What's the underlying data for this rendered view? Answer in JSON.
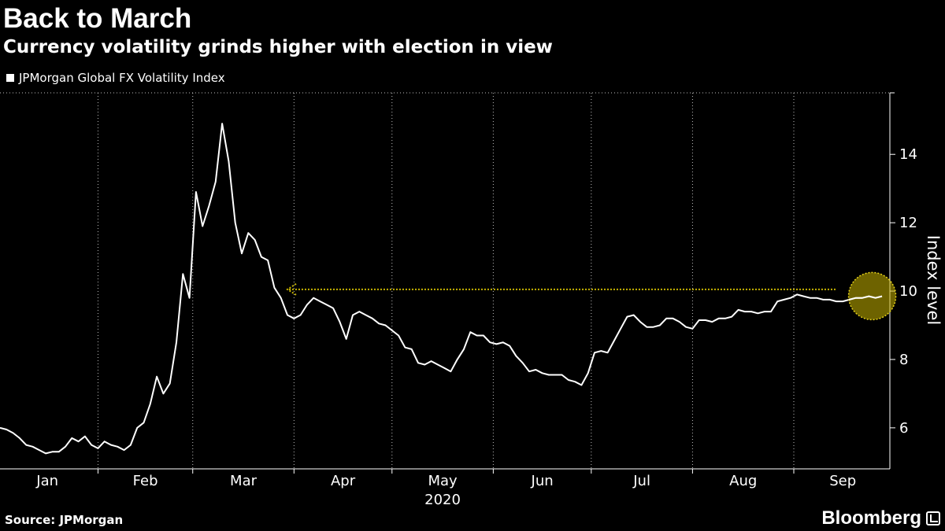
{
  "title": "Back to March",
  "subtitle": "Currency volatility grinds higher with election in view",
  "source": "Source: JPMorgan",
  "brand": "Bloomberg",
  "colors": {
    "background": "#000000",
    "line": "#ffffff",
    "grid": "#ffffff",
    "highlight": "#c8b400",
    "arrow": "#c8b400"
  },
  "chart_data": {
    "type": "line",
    "series": [
      {
        "name": "JPMorgan Global FX Volatility Index",
        "x": [
          "2020-01-02",
          "2020-01-04",
          "2020-01-06",
          "2020-01-08",
          "2020-01-10",
          "2020-01-12",
          "2020-01-14",
          "2020-01-16",
          "2020-01-18",
          "2020-01-20",
          "2020-01-22",
          "2020-01-24",
          "2020-01-26",
          "2020-01-28",
          "2020-01-30",
          "2020-02-01",
          "2020-02-03",
          "2020-02-05",
          "2020-02-07",
          "2020-02-09",
          "2020-02-11",
          "2020-02-13",
          "2020-02-15",
          "2020-02-17",
          "2020-02-19",
          "2020-02-21",
          "2020-02-23",
          "2020-02-25",
          "2020-02-27",
          "2020-02-29",
          "2020-03-02",
          "2020-03-04",
          "2020-03-06",
          "2020-03-08",
          "2020-03-10",
          "2020-03-12",
          "2020-03-14",
          "2020-03-16",
          "2020-03-18",
          "2020-03-20",
          "2020-03-22",
          "2020-03-24",
          "2020-03-26",
          "2020-03-28",
          "2020-03-30",
          "2020-04-01",
          "2020-04-03",
          "2020-04-05",
          "2020-04-07",
          "2020-04-09",
          "2020-04-11",
          "2020-04-13",
          "2020-04-15",
          "2020-04-17",
          "2020-04-19",
          "2020-04-21",
          "2020-04-23",
          "2020-04-25",
          "2020-04-27",
          "2020-04-29",
          "2020-05-01",
          "2020-05-03",
          "2020-05-05",
          "2020-05-07",
          "2020-05-09",
          "2020-05-11",
          "2020-05-13",
          "2020-05-15",
          "2020-05-17",
          "2020-05-19",
          "2020-05-21",
          "2020-05-23",
          "2020-05-25",
          "2020-05-27",
          "2020-05-29",
          "2020-05-31",
          "2020-06-02",
          "2020-06-04",
          "2020-06-06",
          "2020-06-08",
          "2020-06-10",
          "2020-06-12",
          "2020-06-14",
          "2020-06-16",
          "2020-06-18",
          "2020-06-20",
          "2020-06-22",
          "2020-06-24",
          "2020-06-26",
          "2020-06-28",
          "2020-06-30",
          "2020-07-02",
          "2020-07-04",
          "2020-07-06",
          "2020-07-08",
          "2020-07-10",
          "2020-07-12",
          "2020-07-14",
          "2020-07-16",
          "2020-07-18",
          "2020-07-20",
          "2020-07-22",
          "2020-07-24",
          "2020-07-26",
          "2020-07-28",
          "2020-07-30",
          "2020-08-01",
          "2020-08-03",
          "2020-08-05",
          "2020-08-07",
          "2020-08-09",
          "2020-08-11",
          "2020-08-13",
          "2020-08-15",
          "2020-08-17",
          "2020-08-19",
          "2020-08-21",
          "2020-08-23",
          "2020-08-25",
          "2020-08-27",
          "2020-08-29",
          "2020-08-31",
          "2020-09-02",
          "2020-09-04",
          "2020-09-06",
          "2020-09-08",
          "2020-09-10",
          "2020-09-12",
          "2020-09-14",
          "2020-09-16",
          "2020-09-18",
          "2020-09-20",
          "2020-09-22",
          "2020-09-24",
          "2020-09-26",
          "2020-09-28"
        ],
        "y": [
          6.0,
          5.95,
          5.85,
          5.7,
          5.5,
          5.45,
          5.35,
          5.25,
          5.3,
          5.3,
          5.45,
          5.7,
          5.6,
          5.75,
          5.5,
          5.4,
          5.6,
          5.5,
          5.45,
          5.35,
          5.5,
          6.0,
          6.15,
          6.7,
          7.5,
          7.0,
          7.3,
          8.5,
          10.5,
          9.8,
          12.9,
          11.9,
          12.5,
          13.2,
          14.9,
          13.8,
          12.0,
          11.1,
          11.7,
          11.5,
          11.0,
          10.9,
          10.1,
          9.8,
          9.3,
          9.2,
          9.3,
          9.6,
          9.8,
          9.7,
          9.6,
          9.5,
          9.1,
          8.6,
          9.3,
          9.4,
          9.3,
          9.2,
          9.05,
          9.0,
          8.85,
          8.7,
          8.35,
          8.3,
          7.9,
          7.85,
          7.95,
          7.85,
          7.75,
          7.65,
          8.0,
          8.3,
          8.8,
          8.7,
          8.7,
          8.5,
          8.45,
          8.5,
          8.4,
          8.1,
          7.9,
          7.65,
          7.7,
          7.6,
          7.55,
          7.55,
          7.55,
          7.4,
          7.35,
          7.25,
          7.6,
          8.2,
          8.25,
          8.2,
          8.55,
          8.9,
          9.25,
          9.3,
          9.1,
          8.95,
          8.95,
          9.0,
          9.2,
          9.2,
          9.1,
          8.95,
          8.9,
          9.15,
          9.15,
          9.1,
          9.2,
          9.2,
          9.25,
          9.45,
          9.4,
          9.4,
          9.35,
          9.4,
          9.4,
          9.7,
          9.75,
          9.8,
          9.9,
          9.85,
          9.8,
          9.8,
          9.75,
          9.75,
          9.7,
          9.7,
          9.75,
          9.8,
          9.8,
          9.85,
          9.8,
          9.85
        ]
      }
    ],
    "x_start": "2020-01-02",
    "x_end": "2020-09-28",
    "x_tick_labels": [
      "Jan",
      "Feb",
      "Mar",
      "Apr",
      "May",
      "Jun",
      "Jul",
      "Aug",
      "Sep"
    ],
    "x_secondary_label": "2020",
    "y_ticks": [
      6,
      8,
      10,
      12,
      14
    ],
    "ylim": [
      4.8,
      15.8
    ],
    "ylabel": "Index level",
    "y_axis_side": "right",
    "grid": "vertical-dotted",
    "legend_placement": "top-left",
    "annotation": {
      "arrow_from": "2020-09-21",
      "arrow_to": "2020-03-30",
      "arrow_level": 10.05,
      "highlight_center": "2020-09-25",
      "highlight_level": 9.9
    }
  }
}
